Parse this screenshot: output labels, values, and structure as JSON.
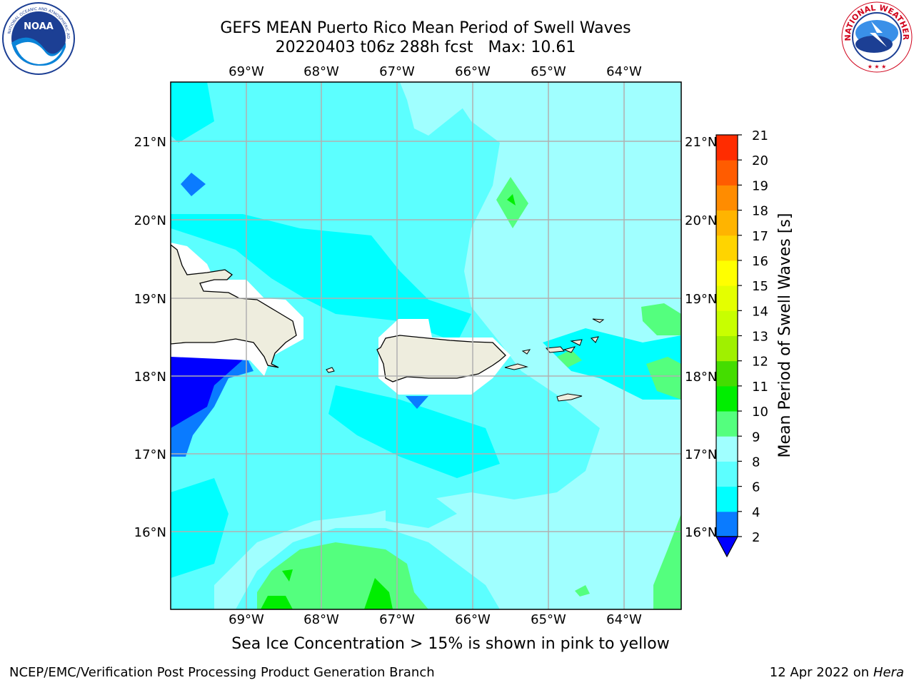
{
  "header": {
    "title_line1": "GEFS MEAN Puerto Rico Mean Period of Swell Waves",
    "title_line2": "20220403 t06z 288h fcst   Max: 10.61"
  },
  "logos": {
    "left": {
      "icon": "noaa-logo",
      "text": "NOAA"
    },
    "right": {
      "icon": "nws-logo",
      "text": "NATIONAL WEATHER SERVICE"
    }
  },
  "map": {
    "lon_labels": [
      "69°W",
      "68°W",
      "67°W",
      "66°W",
      "65°W",
      "64°W"
    ],
    "lat_labels": [
      "21°N",
      "20°N",
      "19°N",
      "18°N",
      "17°N",
      "16°N"
    ],
    "land_color": "#eeedde",
    "grid_color": "#b0b0b0"
  },
  "colorbar": {
    "label": "Mean Period of Swell Waves [s]",
    "ticks": [
      "2",
      "4",
      "6",
      "8",
      "9",
      "10",
      "11",
      "12",
      "13",
      "14",
      "15",
      "16",
      "17",
      "18",
      "19",
      "20",
      "21"
    ],
    "colors": [
      "#0a7bff",
      "#00ffff",
      "#5cffff",
      "#a0ffff",
      "#54ff7e",
      "#00ee00",
      "#44dd00",
      "#a0f000",
      "#c8ff00",
      "#e4ff00",
      "#ffff00",
      "#ffd400",
      "#ffb400",
      "#ff8c00",
      "#ff5c00",
      "#ff2c00",
      "#ff0000"
    ],
    "under_color": "#0000ff"
  },
  "subtitle": "Sea Ice Concentration > 15% is shown in pink to yellow",
  "footer": {
    "left": "NCEP/EMC/Verification Post Processing Product Generation Branch",
    "right_prefix": "12 Apr 2022 on ",
    "right_host": "Hera"
  }
}
